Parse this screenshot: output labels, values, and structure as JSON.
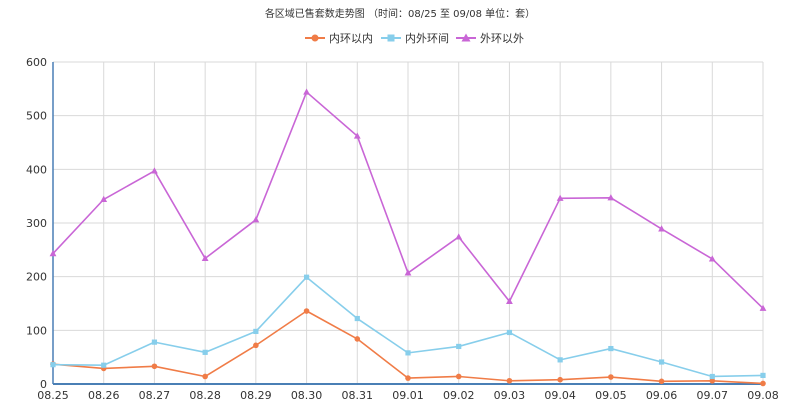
{
  "chart_data": {
    "type": "line",
    "title": "各区域已售套数走势图 （时间：08/25 至 09/08    单位：套）",
    "categories": [
      "08.25",
      "08.26",
      "08.27",
      "08.28",
      "08.29",
      "08.30",
      "08.31",
      "09.01",
      "09.02",
      "09.03",
      "09.04",
      "09.05",
      "09.06",
      "09.07",
      "09.08"
    ],
    "ylim": [
      0,
      600
    ],
    "yticks": [
      "0",
      "100",
      "200",
      "300",
      "400",
      "500",
      "600"
    ],
    "grid": true,
    "legend_position": "top-center",
    "series": [
      {
        "name": "内环以内",
        "color": "#f07c47",
        "marker": "circle",
        "values": [
          37,
          29,
          33,
          14,
          72,
          136,
          84,
          11,
          14,
          6,
          8,
          13,
          5,
          6,
          1
        ]
      },
      {
        "name": "内外环间",
        "color": "#87ceeb",
        "marker": "square",
        "values": [
          36,
          35,
          78,
          59,
          98,
          199,
          122,
          58,
          70,
          96,
          45,
          66,
          41,
          14,
          16
        ]
      },
      {
        "name": "外环以外",
        "color": "#c966d6",
        "marker": "triangle",
        "values": [
          243,
          344,
          397,
          234,
          306,
          544,
          462,
          207,
          274,
          154,
          346,
          347,
          289,
          233,
          141
        ]
      }
    ]
  }
}
